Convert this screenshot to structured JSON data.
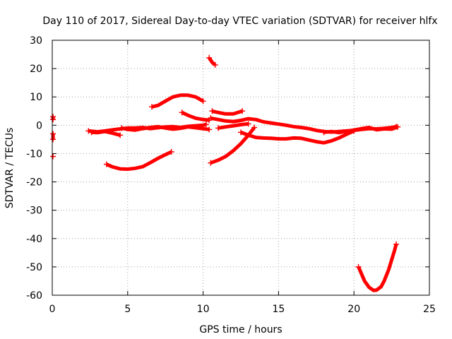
{
  "chart_data": {
    "type": "scatter",
    "title": "Day 110 of 2017, Sidereal Day-to-day VTEC variation (SDTVAR) for receiver hlfx",
    "xlabel": "GPS time / hours",
    "ylabel": "SDTVAR / TECUs",
    "xlim": [
      0,
      25
    ],
    "ylim": [
      -60,
      30
    ],
    "xticks": [
      0,
      5,
      10,
      15,
      20,
      25
    ],
    "yticks": [
      -60,
      -50,
      -40,
      -30,
      -20,
      -10,
      0,
      10,
      20,
      30
    ],
    "grid": true,
    "legend": "none",
    "color": "#ff0000",
    "series": [
      {
        "x": [
          0.05,
          0.05
        ],
        "y": [
          3,
          2
        ]
      },
      {
        "x": [
          0.05,
          0.05,
          0.05
        ],
        "y": [
          -3,
          -4,
          -5
        ]
      },
      {
        "x": [
          0.05
        ],
        "y": [
          -11
        ]
      },
      {
        "x": [
          2.4,
          3,
          3.5,
          4,
          4.5,
          5,
          5.5,
          6,
          6.5,
          7,
          7.5,
          8,
          8.5,
          9,
          9.5,
          10,
          10.2
        ],
        "y": [
          -2,
          -2.3,
          -2,
          -1.6,
          -1.3,
          -1,
          -1,
          -0.8,
          -1.2,
          -0.9,
          -0.6,
          -0.5,
          -0.8,
          -0.4,
          -0.2,
          0,
          0.3
        ]
      },
      {
        "x": [
          2.6,
          3,
          3.5,
          4,
          4.5
        ],
        "y": [
          -2.5,
          -2.6,
          -2.2,
          -2.8,
          -3.5
        ]
      },
      {
        "x": [
          4.6,
          5,
          5.5,
          6,
          6.5,
          7,
          7.5,
          8,
          8.5,
          9,
          9.5,
          10.4
        ],
        "y": [
          -1,
          -1.5,
          -1.7,
          -1.2,
          -0.8,
          -0.5,
          -1,
          -1.4,
          -1.1,
          -0.6,
          -0.9,
          -1.5
        ]
      },
      {
        "x": [
          6.6,
          7,
          7.5,
          8,
          8.5,
          9,
          9.5,
          10
        ],
        "y": [
          6.5,
          7,
          8.5,
          10,
          10.6,
          10.6,
          10,
          8.5
        ]
      },
      {
        "x": [
          8.6,
          9,
          9.5,
          10,
          10.4
        ],
        "y": [
          4.5,
          3.5,
          2.5,
          2,
          1.8
        ]
      },
      {
        "x": [
          10.4,
          10.5,
          10.6,
          10.8
        ],
        "y": [
          23.8,
          23,
          22.2,
          21.3
        ]
      },
      {
        "x": [
          10.6,
          11,
          11.5,
          12,
          12.6
        ],
        "y": [
          5,
          4.5,
          4,
          4,
          5
        ]
      },
      {
        "x": [
          10.5,
          11,
          11.5,
          12,
          12.5,
          13,
          13.5,
          14,
          14.5,
          15,
          15.5,
          16,
          16.5,
          17,
          17.5,
          18,
          18.5,
          19,
          19.5,
          20,
          20.5,
          21,
          21.5,
          22,
          22.5,
          22.8
        ],
        "y": [
          2.5,
          2,
          1.5,
          1.3,
          1.7,
          2.3,
          2,
          1.2,
          0.8,
          0.4,
          0,
          -0.5,
          -0.8,
          -1.2,
          -1.8,
          -2.2,
          -2.4,
          -2.2,
          -2,
          -1.8,
          -1.5,
          -1.2,
          -1.3,
          -1.1,
          -0.8,
          -0.5
        ]
      },
      {
        "x": [
          11,
          11.5,
          12,
          12.5,
          13
        ],
        "y": [
          -1,
          -0.6,
          -0.2,
          0.2,
          0.5
        ]
      },
      {
        "x": [
          10.5,
          11,
          11.5,
          12,
          12.5,
          13,
          13.4
        ],
        "y": [
          -13.3,
          -12.3,
          -11,
          -9,
          -6.5,
          -3.5,
          -0.8
        ]
      },
      {
        "x": [
          12.5,
          13,
          13.5,
          14,
          14.5,
          15,
          15.5,
          16,
          16.5,
          17,
          17.5,
          18,
          18.5,
          19,
          19.5,
          20
        ],
        "y": [
          -2.5,
          -3.5,
          -4.3,
          -4.5,
          -4.6,
          -4.8,
          -4.8,
          -4.5,
          -4.6,
          -5.2,
          -5.8,
          -6.2,
          -5.5,
          -4.5,
          -3.2,
          -2
        ]
      },
      {
        "x": [
          18,
          18.5,
          19,
          19.5,
          20,
          20.5,
          21,
          21.5,
          22,
          22.5,
          22.9
        ],
        "y": [
          -2.5,
          -2.2,
          -2.6,
          -2.1,
          -1.7,
          -1.2,
          -0.8,
          -1.6,
          -1.3,
          -1.4,
          -0.6
        ]
      },
      {
        "x": [
          3.6,
          4,
          4.5,
          5,
          5.5,
          6,
          6.5,
          7,
          7.5,
          7.9
        ],
        "y": [
          -13.8,
          -14.7,
          -15.4,
          -15.5,
          -15.2,
          -14.6,
          -13.2,
          -11.7,
          -10.4,
          -9.4
        ]
      },
      {
        "x": [
          20.3,
          20.5,
          20.7,
          21,
          21.3,
          21.5,
          21.8,
          22,
          22.3,
          22.5,
          22.7,
          22.8
        ],
        "y": [
          -50,
          -52.5,
          -55,
          -57.2,
          -58.3,
          -58.2,
          -57,
          -55,
          -51,
          -47.5,
          -44,
          -42
        ]
      }
    ]
  }
}
